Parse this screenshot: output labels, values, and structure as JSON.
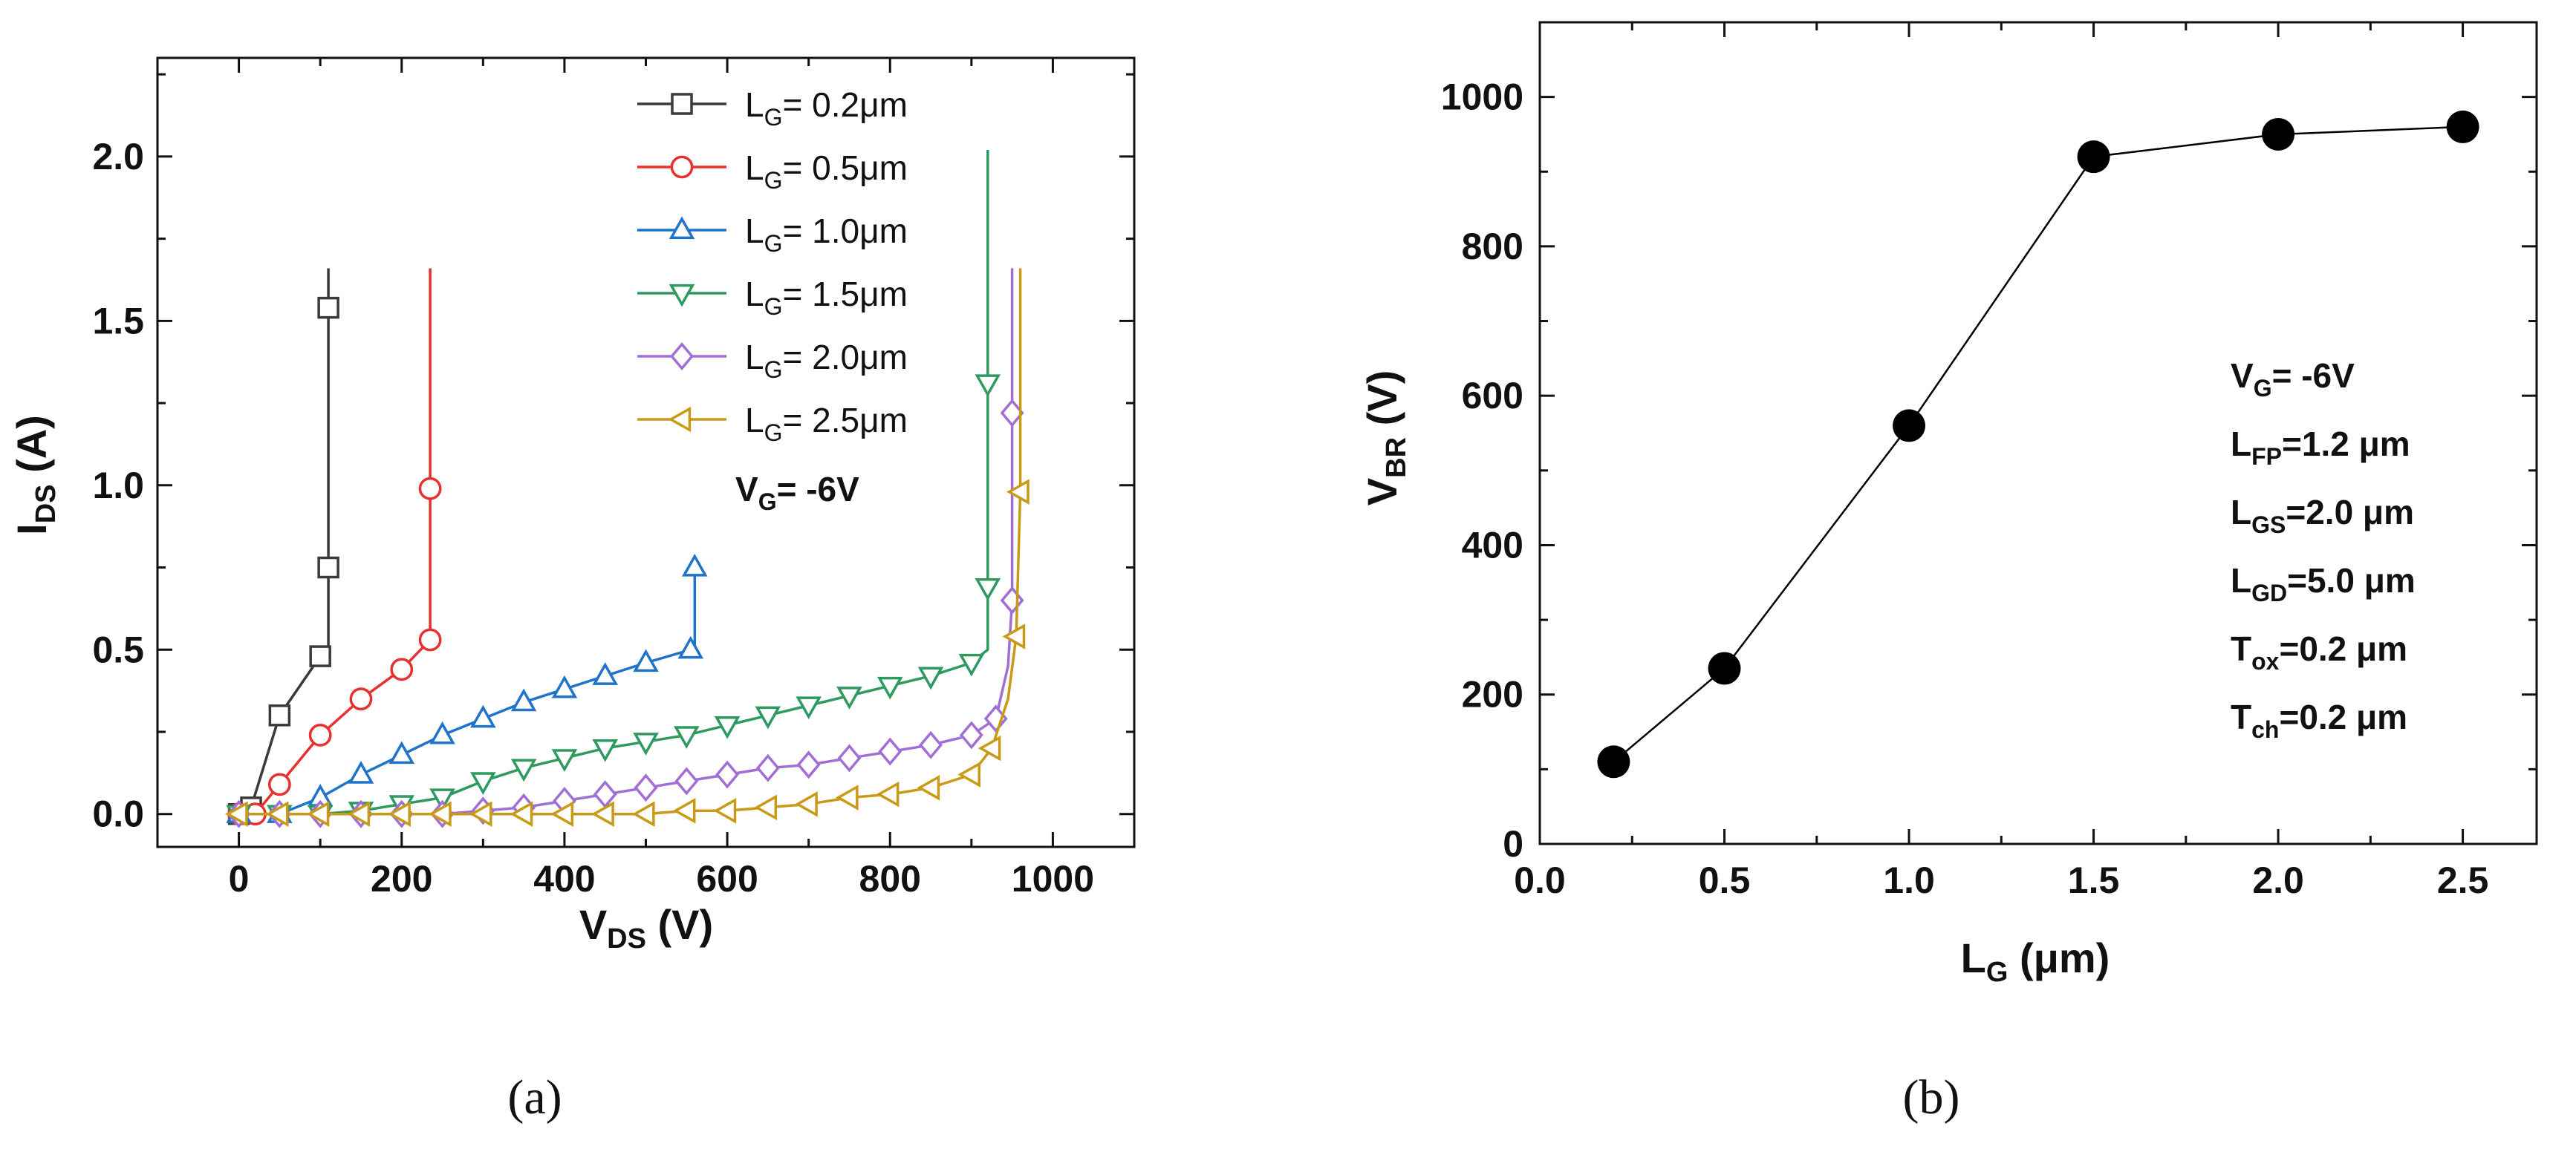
{
  "chart_data": [
    {
      "panel": "a",
      "type": "line",
      "caption": "(a)",
      "xlabel_main": "V",
      "xlabel_sub": "DS",
      "xlabel_tail": " (V)",
      "ylabel_main": "I",
      "ylabel_sub": "DS",
      "ylabel_tail": " (A)",
      "xlim": [
        -100,
        1100
      ],
      "ylim": [
        -0.1,
        2.3
      ],
      "xticks": [
        0,
        200,
        400,
        600,
        800,
        1000
      ],
      "xtick_labels": [
        "0",
        "200",
        "400",
        "600",
        "800",
        "1000"
      ],
      "yticks": [
        0.0,
        0.5,
        1.0,
        1.5,
        2.0
      ],
      "ytick_labels": [
        "0.0",
        "0.5",
        "1.0",
        "1.5",
        "2.0"
      ],
      "annotation": {
        "main": "V",
        "sub": "G",
        "tail": "= -6V"
      },
      "series": [
        {
          "legend_sub": "G",
          "legend_tail": "= 0.2μm",
          "color": "#3a3a3a",
          "marker": "square",
          "x": [
            0,
            15,
            50,
            100,
            110,
            110,
            110,
            110
          ],
          "y": [
            0.0,
            0.02,
            0.3,
            0.48,
            0.48,
            0.75,
            1.54,
            1.66
          ],
          "marker_points": [
            [
              0,
              0.0
            ],
            [
              15,
              0.02
            ],
            [
              50,
              0.3
            ],
            [
              100,
              0.48
            ],
            [
              110,
              0.75
            ],
            [
              110,
              1.54
            ]
          ]
        },
        {
          "legend_sub": "G",
          "legend_tail": "= 0.5μm",
          "color": "#e8312e",
          "marker": "circle",
          "x": [
            0,
            20,
            50,
            100,
            150,
            200,
            235,
            235,
            235
          ],
          "y": [
            0.0,
            0.0,
            0.09,
            0.24,
            0.35,
            0.44,
            0.53,
            0.99,
            1.66
          ],
          "marker_points": [
            [
              0,
              0.0
            ],
            [
              20,
              0.0
            ],
            [
              50,
              0.09
            ],
            [
              100,
              0.24
            ],
            [
              150,
              0.35
            ],
            [
              200,
              0.44
            ],
            [
              235,
              0.53
            ],
            [
              235,
              0.99
            ]
          ]
        },
        {
          "legend_sub": "G",
          "legend_tail": "= 1.0μm",
          "color": "#1f73c8",
          "marker": "triangle-up",
          "x": [
            0,
            50,
            100,
            150,
            200,
            250,
            300,
            350,
            400,
            450,
            500,
            555,
            560,
            560
          ],
          "y": [
            0.0,
            0.0,
            0.05,
            0.12,
            0.18,
            0.24,
            0.29,
            0.34,
            0.38,
            0.42,
            0.46,
            0.5,
            0.5,
            0.75
          ],
          "marker_points": [
            [
              0,
              0.0
            ],
            [
              50,
              0.0
            ],
            [
              100,
              0.05
            ],
            [
              150,
              0.12
            ],
            [
              200,
              0.18
            ],
            [
              250,
              0.24
            ],
            [
              300,
              0.29
            ],
            [
              350,
              0.34
            ],
            [
              400,
              0.38
            ],
            [
              450,
              0.42
            ],
            [
              500,
              0.46
            ],
            [
              555,
              0.5
            ],
            [
              560,
              0.75
            ]
          ]
        },
        {
          "legend_sub": "G",
          "legend_tail": "= 1.5μm",
          "color": "#2e9a5f",
          "marker": "triangle-down",
          "x": [
            0,
            50,
            100,
            150,
            200,
            250,
            300,
            350,
            400,
            450,
            500,
            550,
            600,
            650,
            700,
            750,
            800,
            850,
            900,
            920,
            920,
            920
          ],
          "y": [
            0.0,
            0.0,
            0.0,
            0.01,
            0.03,
            0.05,
            0.1,
            0.14,
            0.17,
            0.2,
            0.22,
            0.24,
            0.27,
            0.3,
            0.33,
            0.36,
            0.39,
            0.42,
            0.46,
            0.5,
            1.3,
            2.02
          ],
          "marker_points": [
            [
              0,
              0.0
            ],
            [
              50,
              0.0
            ],
            [
              100,
              0.0
            ],
            [
              150,
              0.01
            ],
            [
              200,
              0.03
            ],
            [
              250,
              0.05
            ],
            [
              300,
              0.1
            ],
            [
              350,
              0.14
            ],
            [
              400,
              0.17
            ],
            [
              450,
              0.2
            ],
            [
              500,
              0.22
            ],
            [
              550,
              0.24
            ],
            [
              600,
              0.27
            ],
            [
              650,
              0.3
            ],
            [
              700,
              0.33
            ],
            [
              750,
              0.36
            ],
            [
              800,
              0.39
            ],
            [
              850,
              0.42
            ],
            [
              900,
              0.46
            ],
            [
              920,
              0.69
            ],
            [
              920,
              1.31
            ]
          ]
        },
        {
          "legend_sub": "G",
          "legend_tail": "= 2.0μm",
          "color": "#a16ed6",
          "marker": "diamond",
          "x": [
            0,
            50,
            100,
            150,
            200,
            250,
            300,
            350,
            400,
            450,
            500,
            550,
            600,
            650,
            700,
            750,
            800,
            850,
            900,
            930,
            945,
            950,
            950,
            950
          ],
          "y": [
            0.0,
            0.0,
            0.0,
            0.0,
            0.0,
            0.0,
            0.01,
            0.02,
            0.04,
            0.06,
            0.08,
            0.1,
            0.12,
            0.14,
            0.15,
            0.17,
            0.19,
            0.21,
            0.24,
            0.29,
            0.45,
            0.65,
            1.22,
            1.66
          ],
          "marker_points": [
            [
              0,
              0.0
            ],
            [
              50,
              0.0
            ],
            [
              100,
              0.0
            ],
            [
              150,
              0.0
            ],
            [
              200,
              0.0
            ],
            [
              250,
              0.0
            ],
            [
              300,
              0.01
            ],
            [
              350,
              0.02
            ],
            [
              400,
              0.04
            ],
            [
              450,
              0.06
            ],
            [
              500,
              0.08
            ],
            [
              550,
              0.1
            ],
            [
              600,
              0.12
            ],
            [
              650,
              0.14
            ],
            [
              700,
              0.15
            ],
            [
              750,
              0.17
            ],
            [
              800,
              0.19
            ],
            [
              850,
              0.21
            ],
            [
              900,
              0.24
            ],
            [
              930,
              0.29
            ],
            [
              950,
              0.65
            ],
            [
              950,
              1.22
            ]
          ]
        },
        {
          "legend_sub": "G",
          "legend_tail": "= 2.5μm",
          "color": "#c99a17",
          "marker": "triangle-left",
          "x": [
            0,
            50,
            100,
            150,
            200,
            250,
            300,
            350,
            400,
            450,
            500,
            550,
            600,
            650,
            700,
            750,
            800,
            850,
            900,
            925,
            945,
            955,
            960,
            960
          ],
          "y": [
            0.0,
            0.0,
            0.0,
            0.0,
            0.0,
            0.0,
            0.0,
            0.0,
            0.0,
            0.0,
            0.0,
            0.01,
            0.01,
            0.02,
            0.03,
            0.05,
            0.06,
            0.08,
            0.12,
            0.2,
            0.35,
            0.54,
            0.98,
            1.66
          ],
          "marker_points": [
            [
              0,
              0.0
            ],
            [
              50,
              0.0
            ],
            [
              100,
              0.0
            ],
            [
              150,
              0.0
            ],
            [
              200,
              0.0
            ],
            [
              250,
              0.0
            ],
            [
              300,
              0.0
            ],
            [
              350,
              0.0
            ],
            [
              400,
              0.0
            ],
            [
              450,
              0.0
            ],
            [
              500,
              0.0
            ],
            [
              550,
              0.01
            ],
            [
              600,
              0.01
            ],
            [
              650,
              0.02
            ],
            [
              700,
              0.03
            ],
            [
              750,
              0.05
            ],
            [
              800,
              0.06
            ],
            [
              850,
              0.08
            ],
            [
              900,
              0.12
            ],
            [
              925,
              0.2
            ],
            [
              955,
              0.54
            ],
            [
              960,
              0.98
            ]
          ]
        }
      ],
      "legend_main": "L"
    },
    {
      "panel": "b",
      "type": "line",
      "caption": "(b)",
      "xlabel_main": "L",
      "xlabel_sub": "G",
      "xlabel_tail": " (μm)",
      "ylabel_main": "V",
      "ylabel_sub": "BR",
      "ylabel_tail": " (V)",
      "xlim": [
        0.0,
        2.7
      ],
      "ylim": [
        0,
        1100
      ],
      "xticks": [
        0.0,
        0.5,
        1.0,
        1.5,
        2.0,
        2.5
      ],
      "xtick_labels": [
        "0.0",
        "0.5",
        "1.0",
        "1.5",
        "2.0",
        "2.5"
      ],
      "yticks": [
        0,
        200,
        400,
        600,
        800,
        1000
      ],
      "ytick_labels": [
        "0",
        "200",
        "400",
        "600",
        "800",
        "1000"
      ],
      "x": [
        0.2,
        0.5,
        1.0,
        1.5,
        2.0,
        2.5
      ],
      "y": [
        110,
        235,
        560,
        920,
        950,
        960
      ],
      "color": "#000000",
      "annotations": [
        {
          "main": "V",
          "sub": "G",
          "tail": "= -6V"
        },
        {
          "main": "L",
          "sub": "FP",
          "tail": "=1.2 μm"
        },
        {
          "main": "L",
          "sub": "GS",
          "tail": "=2.0 μm"
        },
        {
          "main": "L",
          "sub": "GD",
          "tail": "=5.0 μm"
        },
        {
          "main": "T",
          "sub": "ox",
          "tail": "=0.2 μm"
        },
        {
          "main": "T",
          "sub": "ch",
          "tail": "=0.2 μm"
        }
      ]
    }
  ]
}
